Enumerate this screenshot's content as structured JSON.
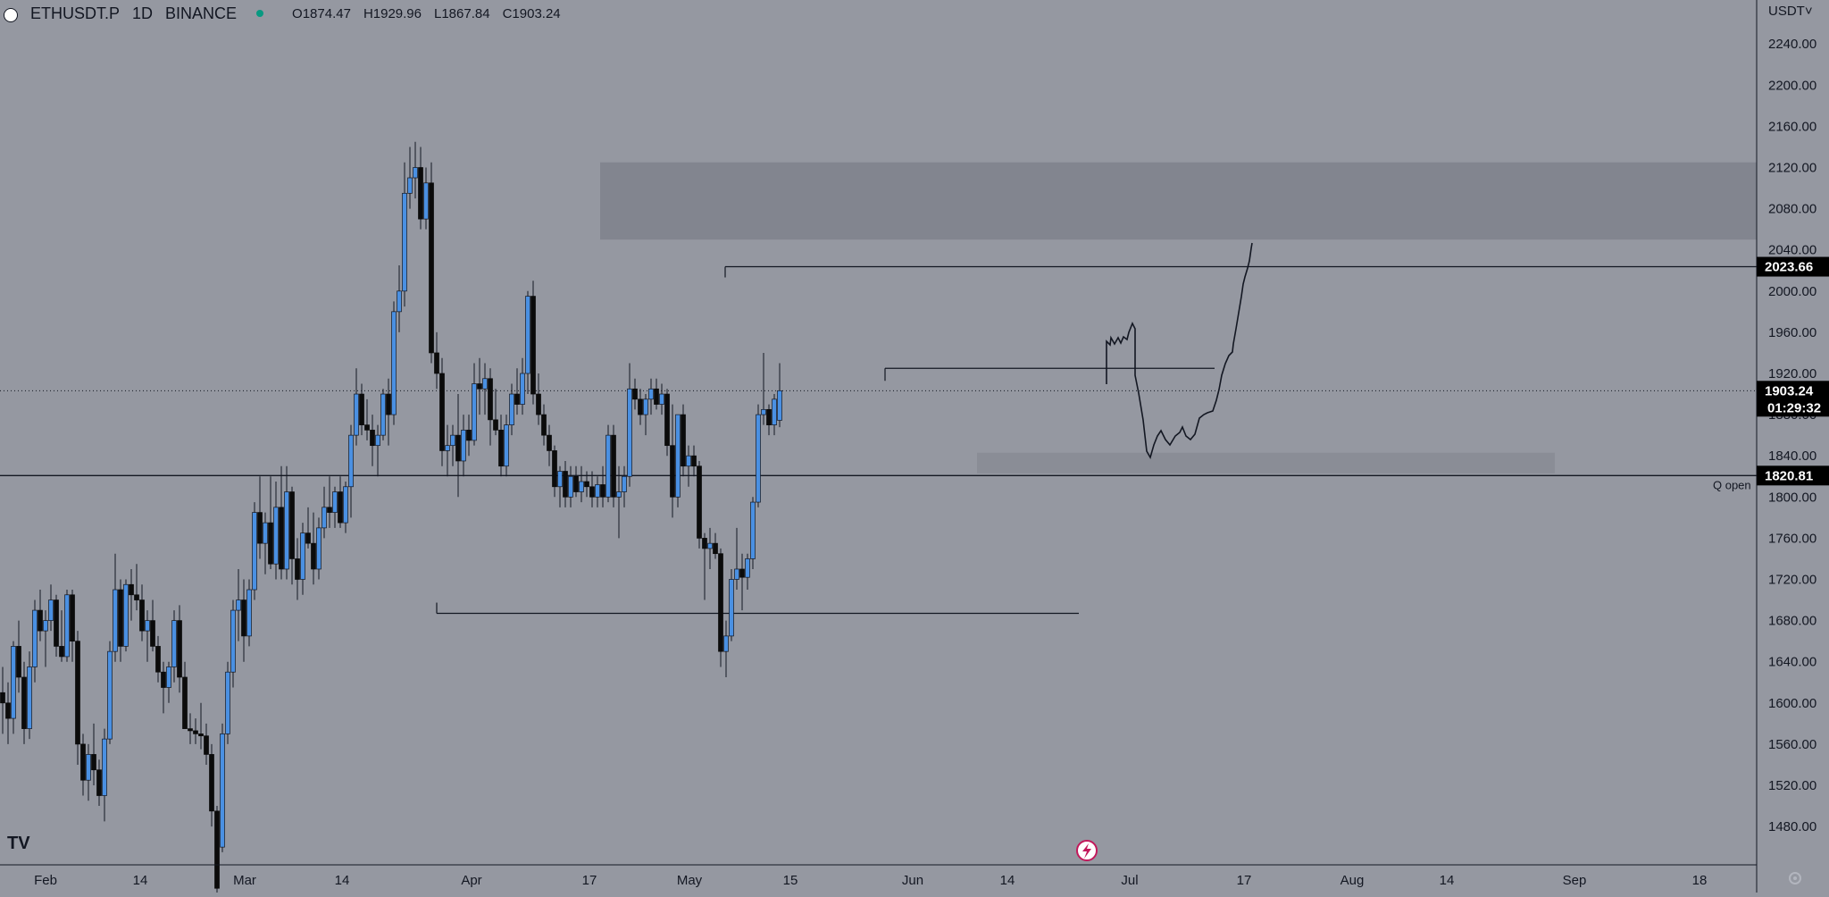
{
  "header": {
    "symbol": "ETHUSDT.P",
    "interval": "1D",
    "exchange": "BINANCE",
    "status_color": "#089981",
    "ohlc_open": "O1874.47",
    "ohlc_high": "H1929.96",
    "ohlc_low": "L1867.84",
    "ohlc_close": "C1903.24"
  },
  "price_axis": {
    "currency": "USDT",
    "currency_chevron": "˅",
    "ticks": [
      2240,
      2200,
      2160,
      2120,
      2080,
      2040,
      2000,
      1960,
      1920,
      1880,
      1840,
      1800,
      1760,
      1720,
      1680,
      1640,
      1600,
      1560,
      1520,
      1480
    ],
    "tick_labels": [
      "2240.00",
      "2200.00",
      "2160.00",
      "2120.00",
      "2080.00",
      "2040.00",
      "2000.00",
      "1960.00",
      "1920.00",
      "1880.00",
      "1840.00",
      "1800.00",
      "1760.00",
      "1720.00",
      "1680.00",
      "1640.00",
      "1600.00",
      "1560.00",
      "1520.00",
      "1480.00"
    ]
  },
  "time_axis": {
    "labels": [
      "Feb",
      "14",
      "Mar",
      "14",
      "Apr",
      "17",
      "May",
      "15",
      "Jun",
      "14",
      "Jul",
      "17",
      "Aug",
      "14",
      "Sep",
      "18"
    ]
  },
  "tags": {
    "target_price": "2023.66",
    "current_price": "1903.24",
    "countdown": "01:29:32",
    "q_open_price": "1820.81",
    "q_open_label": "Q open"
  },
  "colors": {
    "background": "#9598a1",
    "bull_body": "#4a90e2",
    "bear_body": "#0b0b0b",
    "wick": "#131722",
    "zone": "#82858f",
    "zone_light": "#8a8d96",
    "line": "#131722",
    "price_tag_bg": "#000000"
  },
  "logo": {
    "text": "TV"
  },
  "chart_data": {
    "type": "candlestick",
    "symbol": "ETHUSDT.P",
    "interval": "1D",
    "ylim": [
      1460,
      2280
    ],
    "x_range": [
      "Jan 26",
      "Sep 29"
    ],
    "candles": [
      {
        "o": 1610,
        "h": 1635,
        "l": 1570,
        "c": 1600
      },
      {
        "o": 1600,
        "h": 1620,
        "l": 1560,
        "c": 1585
      },
      {
        "o": 1585,
        "h": 1660,
        "l": 1570,
        "c": 1655
      },
      {
        "o": 1655,
        "h": 1680,
        "l": 1610,
        "c": 1625
      },
      {
        "o": 1625,
        "h": 1640,
        "l": 1560,
        "c": 1575
      },
      {
        "o": 1575,
        "h": 1650,
        "l": 1565,
        "c": 1635
      },
      {
        "o": 1635,
        "h": 1700,
        "l": 1620,
        "c": 1690
      },
      {
        "o": 1690,
        "h": 1710,
        "l": 1660,
        "c": 1670
      },
      {
        "o": 1670,
        "h": 1690,
        "l": 1635,
        "c": 1680
      },
      {
        "o": 1680,
        "h": 1715,
        "l": 1670,
        "c": 1700
      },
      {
        "o": 1700,
        "h": 1705,
        "l": 1645,
        "c": 1655
      },
      {
        "o": 1655,
        "h": 1690,
        "l": 1640,
        "c": 1645
      },
      {
        "o": 1645,
        "h": 1710,
        "l": 1640,
        "c": 1705
      },
      {
        "o": 1705,
        "h": 1710,
        "l": 1640,
        "c": 1660
      },
      {
        "o": 1660,
        "h": 1670,
        "l": 1540,
        "c": 1560
      },
      {
        "o": 1560,
        "h": 1570,
        "l": 1510,
        "c": 1525
      },
      {
        "o": 1525,
        "h": 1560,
        "l": 1505,
        "c": 1550
      },
      {
        "o": 1550,
        "h": 1580,
        "l": 1520,
        "c": 1535
      },
      {
        "o": 1535,
        "h": 1545,
        "l": 1500,
        "c": 1510
      },
      {
        "o": 1510,
        "h": 1575,
        "l": 1485,
        "c": 1565
      },
      {
        "o": 1565,
        "h": 1660,
        "l": 1560,
        "c": 1650
      },
      {
        "o": 1650,
        "h": 1745,
        "l": 1640,
        "c": 1710
      },
      {
        "o": 1710,
        "h": 1720,
        "l": 1640,
        "c": 1655
      },
      {
        "o": 1655,
        "h": 1720,
        "l": 1650,
        "c": 1715
      },
      {
        "o": 1715,
        "h": 1730,
        "l": 1680,
        "c": 1705
      },
      {
        "o": 1705,
        "h": 1735,
        "l": 1690,
        "c": 1700
      },
      {
        "o": 1700,
        "h": 1715,
        "l": 1660,
        "c": 1670
      },
      {
        "o": 1670,
        "h": 1690,
        "l": 1640,
        "c": 1680
      },
      {
        "o": 1680,
        "h": 1700,
        "l": 1650,
        "c": 1655
      },
      {
        "o": 1655,
        "h": 1665,
        "l": 1620,
        "c": 1630
      },
      {
        "o": 1630,
        "h": 1640,
        "l": 1590,
        "c": 1615
      },
      {
        "o": 1615,
        "h": 1640,
        "l": 1600,
        "c": 1635
      },
      {
        "o": 1635,
        "h": 1690,
        "l": 1620,
        "c": 1680
      },
      {
        "o": 1680,
        "h": 1695,
        "l": 1610,
        "c": 1625
      },
      {
        "o": 1625,
        "h": 1640,
        "l": 1580,
        "c": 1575
      },
      {
        "o": 1575,
        "h": 1590,
        "l": 1560,
        "c": 1573
      },
      {
        "o": 1573,
        "h": 1585,
        "l": 1560,
        "c": 1570
      },
      {
        "o": 1570,
        "h": 1600,
        "l": 1555,
        "c": 1568
      },
      {
        "o": 1568,
        "h": 1580,
        "l": 1540,
        "c": 1550
      },
      {
        "o": 1550,
        "h": 1560,
        "l": 1480,
        "c": 1495
      },
      {
        "o": 1495,
        "h": 1500,
        "l": 1410,
        "c": 1420
      },
      {
        "o": 1460,
        "h": 1580,
        "l": 1455,
        "c": 1570
      },
      {
        "o": 1570,
        "h": 1640,
        "l": 1560,
        "c": 1630
      },
      {
        "o": 1630,
        "h": 1700,
        "l": 1615,
        "c": 1690
      },
      {
        "o": 1690,
        "h": 1730,
        "l": 1660,
        "c": 1700
      },
      {
        "o": 1700,
        "h": 1720,
        "l": 1640,
        "c": 1665
      },
      {
        "o": 1665,
        "h": 1720,
        "l": 1655,
        "c": 1710
      },
      {
        "o": 1710,
        "h": 1795,
        "l": 1700,
        "c": 1785
      },
      {
        "o": 1785,
        "h": 1820,
        "l": 1740,
        "c": 1755
      },
      {
        "o": 1755,
        "h": 1785,
        "l": 1725,
        "c": 1775
      },
      {
        "o": 1775,
        "h": 1820,
        "l": 1730,
        "c": 1735
      },
      {
        "o": 1735,
        "h": 1815,
        "l": 1720,
        "c": 1790
      },
      {
        "o": 1790,
        "h": 1830,
        "l": 1720,
        "c": 1730
      },
      {
        "o": 1730,
        "h": 1830,
        "l": 1720,
        "c": 1805
      },
      {
        "o": 1805,
        "h": 1810,
        "l": 1715,
        "c": 1740
      },
      {
        "o": 1740,
        "h": 1760,
        "l": 1700,
        "c": 1720
      },
      {
        "o": 1720,
        "h": 1775,
        "l": 1705,
        "c": 1765
      },
      {
        "o": 1765,
        "h": 1790,
        "l": 1750,
        "c": 1755
      },
      {
        "o": 1755,
        "h": 1785,
        "l": 1715,
        "c": 1730
      },
      {
        "o": 1730,
        "h": 1780,
        "l": 1720,
        "c": 1770
      },
      {
        "o": 1770,
        "h": 1810,
        "l": 1760,
        "c": 1790
      },
      {
        "o": 1790,
        "h": 1820,
        "l": 1770,
        "c": 1785
      },
      {
        "o": 1785,
        "h": 1810,
        "l": 1770,
        "c": 1805
      },
      {
        "o": 1805,
        "h": 1820,
        "l": 1770,
        "c": 1775
      },
      {
        "o": 1775,
        "h": 1815,
        "l": 1765,
        "c": 1810
      },
      {
        "o": 1810,
        "h": 1870,
        "l": 1780,
        "c": 1860
      },
      {
        "o": 1860,
        "h": 1925,
        "l": 1850,
        "c": 1900
      },
      {
        "o": 1900,
        "h": 1910,
        "l": 1860,
        "c": 1870
      },
      {
        "o": 1870,
        "h": 1895,
        "l": 1855,
        "c": 1865
      },
      {
        "o": 1865,
        "h": 1880,
        "l": 1830,
        "c": 1850
      },
      {
        "o": 1850,
        "h": 1870,
        "l": 1820,
        "c": 1860
      },
      {
        "o": 1860,
        "h": 1905,
        "l": 1855,
        "c": 1900
      },
      {
        "o": 1900,
        "h": 1915,
        "l": 1850,
        "c": 1880
      },
      {
        "o": 1880,
        "h": 1990,
        "l": 1870,
        "c": 1980
      },
      {
        "o": 1980,
        "h": 2025,
        "l": 1960,
        "c": 2000
      },
      {
        "o": 2000,
        "h": 2125,
        "l": 1985,
        "c": 2095
      },
      {
        "o": 2095,
        "h": 2140,
        "l": 2080,
        "c": 2110
      },
      {
        "o": 2110,
        "h": 2145,
        "l": 2090,
        "c": 2120
      },
      {
        "o": 2120,
        "h": 2140,
        "l": 2060,
        "c": 2070
      },
      {
        "o": 2070,
        "h": 2120,
        "l": 2060,
        "c": 2105
      },
      {
        "o": 2105,
        "h": 2125,
        "l": 1930,
        "c": 1940
      },
      {
        "o": 1940,
        "h": 1960,
        "l": 1905,
        "c": 1920
      },
      {
        "o": 1920,
        "h": 1935,
        "l": 1830,
        "c": 1845
      },
      {
        "o": 1845,
        "h": 1870,
        "l": 1820,
        "c": 1850
      },
      {
        "o": 1850,
        "h": 1870,
        "l": 1830,
        "c": 1860
      },
      {
        "o": 1860,
        "h": 1900,
        "l": 1800,
        "c": 1835
      },
      {
        "o": 1835,
        "h": 1880,
        "l": 1820,
        "c": 1865
      },
      {
        "o": 1865,
        "h": 1880,
        "l": 1840,
        "c": 1855
      },
      {
        "o": 1855,
        "h": 1930,
        "l": 1850,
        "c": 1910
      },
      {
        "o": 1910,
        "h": 1935,
        "l": 1880,
        "c": 1905
      },
      {
        "o": 1905,
        "h": 1930,
        "l": 1880,
        "c": 1915
      },
      {
        "o": 1915,
        "h": 1925,
        "l": 1850,
        "c": 1875
      },
      {
        "o": 1875,
        "h": 1905,
        "l": 1860,
        "c": 1865
      },
      {
        "o": 1865,
        "h": 1880,
        "l": 1820,
        "c": 1830
      },
      {
        "o": 1830,
        "h": 1880,
        "l": 1820,
        "c": 1870
      },
      {
        "o": 1870,
        "h": 1910,
        "l": 1860,
        "c": 1900
      },
      {
        "o": 1900,
        "h": 1925,
        "l": 1880,
        "c": 1890
      },
      {
        "o": 1890,
        "h": 1935,
        "l": 1880,
        "c": 1920
      },
      {
        "o": 1920,
        "h": 2000,
        "l": 1900,
        "c": 1995
      },
      {
        "o": 1995,
        "h": 2010,
        "l": 1890,
        "c": 1900
      },
      {
        "o": 1900,
        "h": 1920,
        "l": 1870,
        "c": 1880
      },
      {
        "o": 1880,
        "h": 1890,
        "l": 1850,
        "c": 1860
      },
      {
        "o": 1860,
        "h": 1870,
        "l": 1830,
        "c": 1845
      },
      {
        "o": 1845,
        "h": 1850,
        "l": 1800,
        "c": 1810
      },
      {
        "o": 1810,
        "h": 1830,
        "l": 1790,
        "c": 1825
      },
      {
        "o": 1825,
        "h": 1835,
        "l": 1790,
        "c": 1800
      },
      {
        "o": 1800,
        "h": 1830,
        "l": 1790,
        "c": 1820
      },
      {
        "o": 1820,
        "h": 1830,
        "l": 1800,
        "c": 1805
      },
      {
        "o": 1805,
        "h": 1830,
        "l": 1795,
        "c": 1815
      },
      {
        "o": 1815,
        "h": 1825,
        "l": 1800,
        "c": 1810
      },
      {
        "o": 1810,
        "h": 1825,
        "l": 1790,
        "c": 1800
      },
      {
        "o": 1800,
        "h": 1820,
        "l": 1790,
        "c": 1812
      },
      {
        "o": 1812,
        "h": 1830,
        "l": 1790,
        "c": 1800
      },
      {
        "o": 1800,
        "h": 1870,
        "l": 1795,
        "c": 1860
      },
      {
        "o": 1860,
        "h": 1870,
        "l": 1790,
        "c": 1800
      },
      {
        "o": 1800,
        "h": 1830,
        "l": 1760,
        "c": 1805
      },
      {
        "o": 1805,
        "h": 1830,
        "l": 1790,
        "c": 1820
      },
      {
        "o": 1820,
        "h": 1930,
        "l": 1810,
        "c": 1905
      },
      {
        "o": 1905,
        "h": 1915,
        "l": 1885,
        "c": 1895
      },
      {
        "o": 1895,
        "h": 1905,
        "l": 1870,
        "c": 1880
      },
      {
        "o": 1880,
        "h": 1900,
        "l": 1860,
        "c": 1895
      },
      {
        "o": 1895,
        "h": 1915,
        "l": 1880,
        "c": 1905
      },
      {
        "o": 1905,
        "h": 1915,
        "l": 1885,
        "c": 1890
      },
      {
        "o": 1890,
        "h": 1910,
        "l": 1880,
        "c": 1900
      },
      {
        "o": 1900,
        "h": 1905,
        "l": 1840,
        "c": 1850
      },
      {
        "o": 1850,
        "h": 1890,
        "l": 1780,
        "c": 1800
      },
      {
        "o": 1800,
        "h": 1880,
        "l": 1790,
        "c": 1880
      },
      {
        "o": 1880,
        "h": 1890,
        "l": 1820,
        "c": 1830
      },
      {
        "o": 1830,
        "h": 1850,
        "l": 1810,
        "c": 1840
      },
      {
        "o": 1840,
        "h": 1850,
        "l": 1820,
        "c": 1830
      },
      {
        "o": 1830,
        "h": 1835,
        "l": 1750,
        "c": 1760
      },
      {
        "o": 1760,
        "h": 1765,
        "l": 1700,
        "c": 1750
      },
      {
        "o": 1750,
        "h": 1770,
        "l": 1730,
        "c": 1755
      },
      {
        "o": 1755,
        "h": 1765,
        "l": 1740,
        "c": 1745
      },
      {
        "o": 1745,
        "h": 1750,
        "l": 1635,
        "c": 1650
      },
      {
        "o": 1650,
        "h": 1680,
        "l": 1625,
        "c": 1665
      },
      {
        "o": 1665,
        "h": 1730,
        "l": 1660,
        "c": 1720
      },
      {
        "o": 1720,
        "h": 1770,
        "l": 1710,
        "c": 1730
      },
      {
        "o": 1730,
        "h": 1745,
        "l": 1690,
        "c": 1722
      },
      {
        "o": 1722,
        "h": 1745,
        "l": 1710,
        "c": 1740
      },
      {
        "o": 1740,
        "h": 1800,
        "l": 1730,
        "c": 1795
      },
      {
        "o": 1795,
        "h": 1890,
        "l": 1790,
        "c": 1880
      },
      {
        "o": 1880,
        "h": 1940,
        "l": 1870,
        "c": 1885
      },
      {
        "o": 1885,
        "h": 1890,
        "l": 1860,
        "c": 1870
      },
      {
        "o": 1870,
        "h": 1900,
        "l": 1860,
        "c": 1895
      },
      {
        "o": 1874.47,
        "h": 1929.96,
        "l": 1867.84,
        "c": 1903.24
      }
    ],
    "drawings": {
      "supply_zone": [
        2050,
        2125
      ],
      "demand_zone": [
        1823,
        1843
      ],
      "target_line": 2023.66,
      "q_open_line": 1820.81,
      "range_high_line": 1925,
      "range_low_line": 1687,
      "current_price_line": 1903.24
    }
  }
}
